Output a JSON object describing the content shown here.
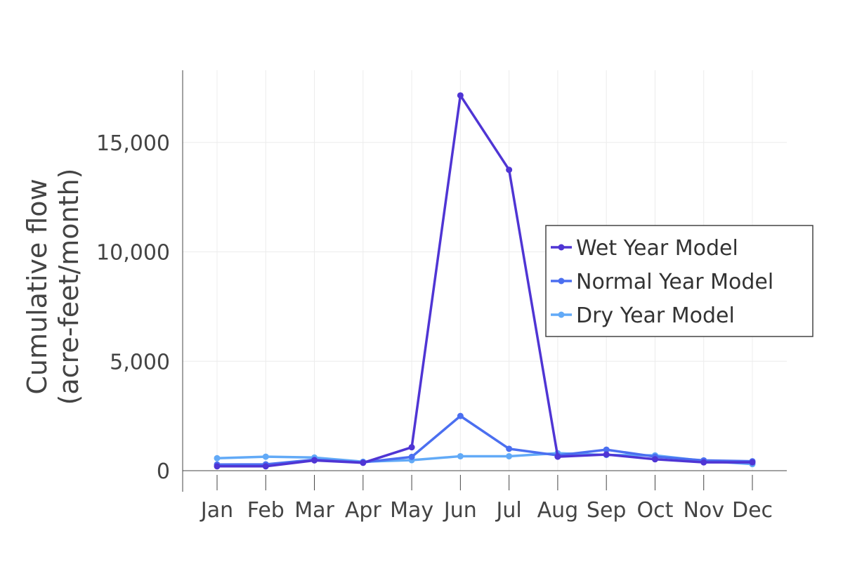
{
  "chart_data": {
    "type": "line",
    "title": "",
    "xlabel": "",
    "ylabel_lines": [
      "Cumulative flow",
      "(acre-feet/month)"
    ],
    "categories": [
      "Jan",
      "Feb",
      "Mar",
      "Apr",
      "May",
      "Jun",
      "Jul",
      "Aug",
      "Sep",
      "Oct",
      "Nov",
      "Dec"
    ],
    "ylim": [
      0,
      18300
    ],
    "yticks": [
      0,
      5000,
      10000,
      15000
    ],
    "ytick_labels": [
      "0",
      "5,000",
      "10,000",
      "15,000"
    ],
    "grid": true,
    "legend_position": "right",
    "series": [
      {
        "name": "Wet Year Model",
        "color": "#4f35d4",
        "values": [
          200,
          200,
          470,
          360,
          1070,
          17150,
          13750,
          640,
          740,
          520,
          380,
          380
        ]
      },
      {
        "name": "Normal Year Model",
        "color": "#4b6ff0",
        "values": [
          280,
          290,
          500,
          380,
          630,
          2500,
          1000,
          700,
          960,
          640,
          470,
          430
        ]
      },
      {
        "name": "Dry Year Model",
        "color": "#62aaf7",
        "values": [
          570,
          640,
          600,
          410,
          480,
          660,
          660,
          800,
          720,
          700,
          450,
          300
        ]
      }
    ]
  }
}
